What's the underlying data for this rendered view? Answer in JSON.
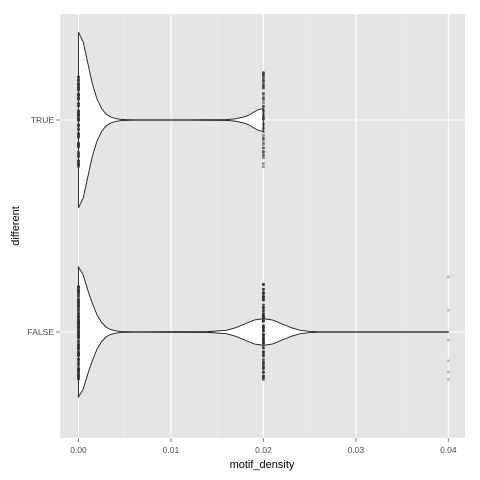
{
  "chart_data": {
    "type": "violin",
    "orientation": "horizontal",
    "xlabel": "motif_density",
    "ylabel": "different",
    "xlim": [
      -0.002,
      0.0418
    ],
    "x_ticks": [
      0.0,
      0.01,
      0.02,
      0.03,
      0.04
    ],
    "x_tick_labels": [
      "0.00",
      "0.01",
      "0.02",
      "0.03",
      "0.04"
    ],
    "categories": [
      "TRUE",
      "FALSE"
    ],
    "grid": true,
    "legend": "none",
    "colors": {
      "panel_background": "#e5e5e5",
      "grid_major": "#ffffff",
      "grid_minor": "#f2f2f2",
      "violin_fill": "#ffffff",
      "violin_outline": "#1a1a1a",
      "points": "#333333",
      "points_faint": "#a6a6a6"
    },
    "series": [
      {
        "name": "TRUE",
        "density_profile": [
          [
            0.0,
            0.92
          ],
          [
            0.0005,
            0.82
          ],
          [
            0.001,
            0.6
          ],
          [
            0.0015,
            0.38
          ],
          [
            0.002,
            0.22
          ],
          [
            0.0025,
            0.12
          ],
          [
            0.003,
            0.06
          ],
          [
            0.0035,
            0.03
          ],
          [
            0.004,
            0.015
          ],
          [
            0.0045,
            0.007
          ],
          [
            0.005,
            0.004
          ],
          [
            0.006,
            0.002
          ],
          [
            0.012,
            0.002
          ],
          [
            0.016,
            0.004
          ],
          [
            0.017,
            0.012
          ],
          [
            0.018,
            0.035
          ],
          [
            0.0185,
            0.055
          ],
          [
            0.019,
            0.085
          ],
          [
            0.0195,
            0.11
          ],
          [
            0.02,
            0.12
          ]
        ],
        "point_clusters": [
          {
            "x": 0.0,
            "count": 80,
            "tone": "dark"
          },
          {
            "x": 0.02,
            "count": 60,
            "tone": "medium"
          }
        ]
      },
      {
        "name": "FALSE",
        "density_profile": [
          [
            0.0,
            0.68
          ],
          [
            0.0005,
            0.6
          ],
          [
            0.001,
            0.44
          ],
          [
            0.0015,
            0.3
          ],
          [
            0.002,
            0.18
          ],
          [
            0.0025,
            0.1
          ],
          [
            0.003,
            0.05
          ],
          [
            0.0035,
            0.025
          ],
          [
            0.004,
            0.012
          ],
          [
            0.0045,
            0.006
          ],
          [
            0.005,
            0.003
          ],
          [
            0.006,
            0.002
          ],
          [
            0.014,
            0.004
          ],
          [
            0.016,
            0.018
          ],
          [
            0.017,
            0.045
          ],
          [
            0.018,
            0.085
          ],
          [
            0.019,
            0.125
          ],
          [
            0.02,
            0.14
          ],
          [
            0.021,
            0.125
          ],
          [
            0.022,
            0.085
          ],
          [
            0.023,
            0.045
          ],
          [
            0.024,
            0.018
          ],
          [
            0.025,
            0.006
          ],
          [
            0.026,
            0.002
          ],
          [
            0.04,
            0.002
          ]
        ],
        "point_clusters": [
          {
            "x": 0.0,
            "count": 120,
            "tone": "dark"
          },
          {
            "x": 0.02,
            "count": 80,
            "tone": "dark"
          },
          {
            "x": 0.04,
            "count": 6,
            "tone": "faint"
          }
        ]
      }
    ]
  }
}
